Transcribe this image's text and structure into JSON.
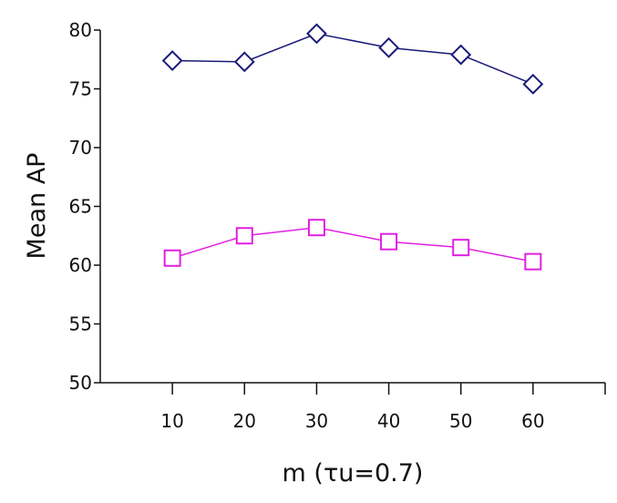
{
  "chart_data": {
    "type": "line",
    "title": "",
    "xlabel": "m (τu=0.7)",
    "ylabel": "Mean AP",
    "x": [
      10,
      20,
      30,
      40,
      50,
      60
    ],
    "xticks": [
      "10",
      "20",
      "30",
      "40",
      "50",
      "60"
    ],
    "xlim": [
      0,
      70
    ],
    "ylim": [
      50,
      80
    ],
    "yticks": [
      "50",
      "55",
      "60",
      "65",
      "70",
      "75",
      "80"
    ],
    "grid": false,
    "legend": "none",
    "series": [
      {
        "marker": "diamond",
        "color": "#1a1a7a",
        "values": [
          77.4,
          77.3,
          79.7,
          78.5,
          77.9,
          75.4
        ]
      },
      {
        "marker": "square",
        "color": "#e020e0",
        "values": [
          60.6,
          62.5,
          63.2,
          62.0,
          61.5,
          60.3
        ]
      }
    ]
  }
}
